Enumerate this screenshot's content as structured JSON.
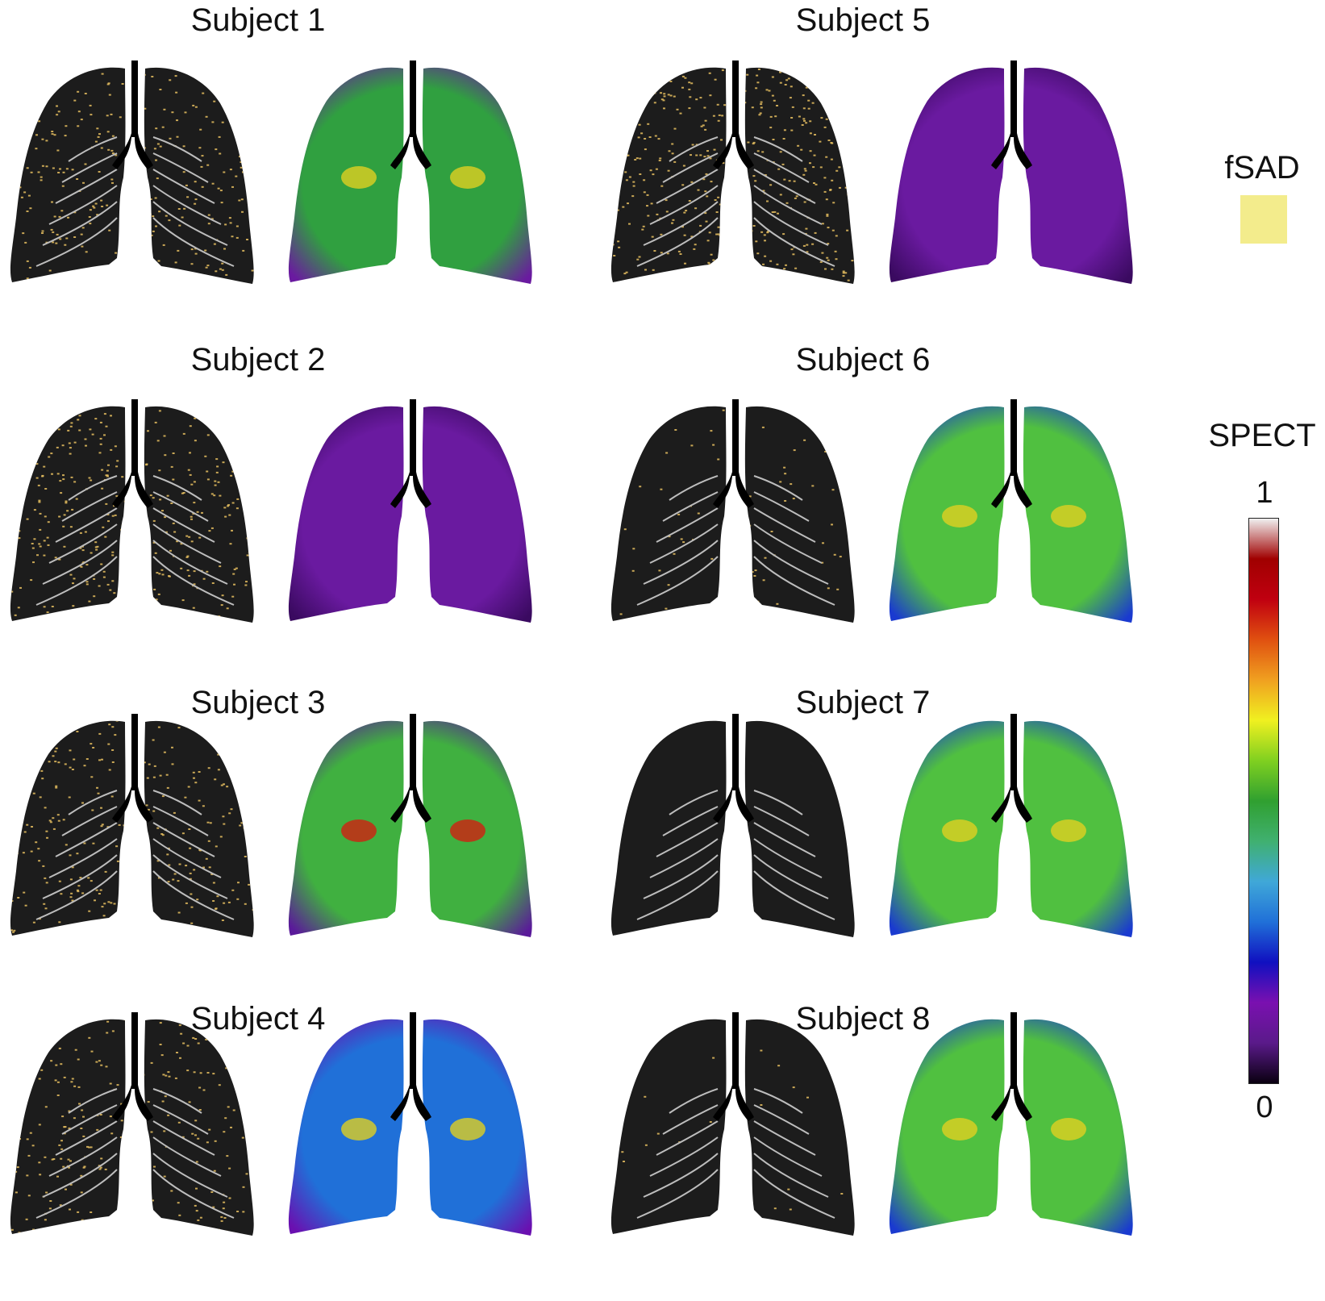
{
  "subjects": [
    {
      "title": "Subject 1",
      "ct_fsad": 0.55,
      "spect": "mixed-high"
    },
    {
      "title": "Subject 2",
      "ct_fsad": 0.75,
      "spect": "low"
    },
    {
      "title": "Subject 3",
      "ct_fsad": 0.6,
      "spect": "high"
    },
    {
      "title": "Subject 4",
      "ct_fsad": 0.5,
      "spect": "patchy"
    },
    {
      "title": "Subject 5",
      "ct_fsad": 0.8,
      "spect": "low"
    },
    {
      "title": "Subject 6",
      "ct_fsad": 0.15,
      "spect": "medium"
    },
    {
      "title": "Subject 7",
      "ct_fsad": 0.0,
      "spect": "medium"
    },
    {
      "title": "Subject 8",
      "ct_fsad": 0.05,
      "spect": "medium"
    }
  ],
  "legend": {
    "fsad_label": "fSAD",
    "fsad_color": "#f3ec8c",
    "spect_label": "SPECT",
    "spect_max": "1",
    "spect_min": "0",
    "colorscale": [
      "#0a0010",
      "#5a1a8a",
      "#7a10b0",
      "#1010c0",
      "#2070d8",
      "#40a8d8",
      "#40b070",
      "#30a030",
      "#80d020",
      "#f0f020",
      "#f0a020",
      "#e05010",
      "#c00010",
      "#a00000",
      "#f0f0f0"
    ]
  }
}
